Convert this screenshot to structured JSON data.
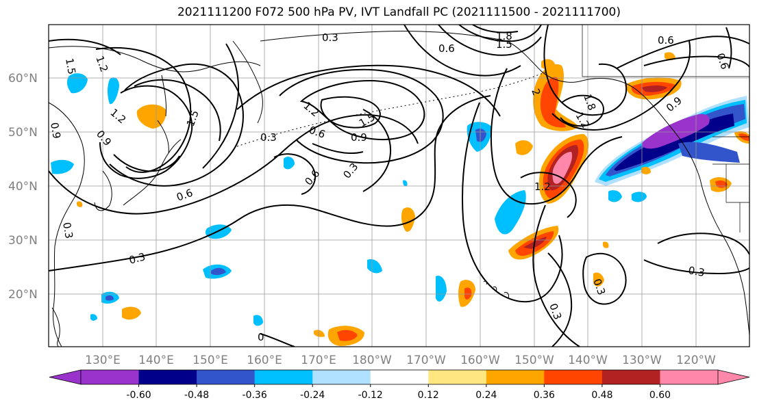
{
  "title": "2021111200 F072 500 hPa PV, IVT Landfall PC (2021111500 - 2021111700)",
  "latitude_labels": [
    "60°N",
    "50°N",
    "40°N",
    "30°N",
    "20°N"
  ],
  "longitude_labels": [
    "130°E",
    "140°E",
    "150°E",
    "160°E",
    "170°E",
    "180°W",
    "170°W",
    "160°W",
    "150°W",
    "140°W",
    "130°W",
    "120°W"
  ],
  "colorbar": {
    "colors": [
      "#9933cc",
      "#00008b",
      "#3355cc",
      "#00bfff",
      "#b0e0ff",
      "#ffffff",
      "#ffe680",
      "#ffa500",
      "#ff4500",
      "#b22222",
      "#ff88aa"
    ],
    "tick_labels": [
      "-0.60",
      "-0.48",
      "-0.36",
      "-0.24",
      "-0.12",
      "0.12",
      "0.24",
      "0.36",
      "0.48",
      "0.60"
    ],
    "extend": "both"
  },
  "contour_labels": [
    "0.3",
    "1.8",
    "1.5",
    "0.6",
    "0.6",
    "1.5",
    "1.2",
    "1.2",
    "1.5",
    "0.9",
    "0.9",
    "1.2",
    "1.5",
    "0.3",
    "0.6",
    "0.9",
    "1.2",
    "0.6",
    "0.3",
    "2",
    "1.8",
    "0.9",
    "0.6",
    "1.2",
    "0.3",
    "0.3",
    "0.3",
    "0.3",
    "0",
    "0.3",
    "0.6"
  ],
  "fill_colors": {
    "cyan": "#00bfff",
    "blue": "#3355cc",
    "navy": "#00008b",
    "purple": "#9933cc",
    "light_blue": "#b0e0ff",
    "yellow": "#ffe680",
    "orange": "#ffa500",
    "red_orange": "#ff4500",
    "dark_red": "#b22222",
    "pink": "#ff88aa"
  }
}
